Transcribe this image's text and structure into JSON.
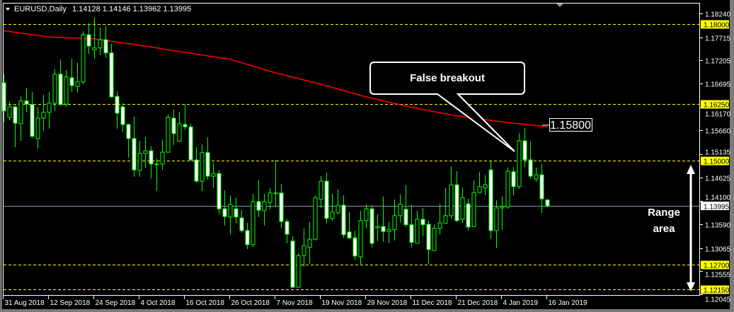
{
  "header": {
    "symbol_timeframe": "EURUSD,Daily",
    "ohlc_text": "1.14128 1.14146 1.13962 1.13995"
  },
  "colors": {
    "background": "#000000",
    "candle_outline": "#00ff00",
    "bear_body": "#ffffff",
    "bull_body": "#000000",
    "level_line": "#ffff00",
    "moving_average": "#ff0000",
    "current_price_line": "#8a9bb0",
    "annotation": "#ffffff"
  },
  "annotations": {
    "callout_text": "False breakout",
    "ma_price_label": "1.15800",
    "range_label_line1": "Range",
    "range_label_line2": "area"
  },
  "chart_data": {
    "type": "candlestick",
    "title": "",
    "ylim": [
      1.12045,
      1.1824
    ],
    "grid": false,
    "y_ticks": [
      "1.18240",
      "1.17715",
      "1.17205",
      "1.16695",
      "1.16170",
      "1.15660",
      "1.15135",
      "1.14625",
      "1.14100",
      "1.13590",
      "1.13065",
      "1.12555",
      "1.12045"
    ],
    "x_tick_labels": [
      "31 Aug 2018",
      "12 Sep 2018",
      "24 Sep 2018",
      "4 Oct 2018",
      "16 Oct 2018",
      "26 Oct 2018",
      "7 Nov 2018",
      "19 Nov 2018",
      "29 Nov 2018",
      "11 Dec 2018",
      "21 Dec 2018",
      "4 Jan 2019",
      "16 Jan 2019"
    ],
    "x_tick_every_n_bars": 8,
    "horizontal_levels": [
      "1.18000",
      "1.16250",
      "1.15000",
      "1.12700",
      "1.12150"
    ],
    "current_price": "1.13995",
    "candle_fields": [
      "open",
      "high",
      "low",
      "close"
    ],
    "candles": [
      [
        1.1671,
        1.169,
        1.1584,
        1.1609
      ],
      [
        1.1595,
        1.1629,
        1.1588,
        1.1618
      ],
      [
        1.1618,
        1.1621,
        1.1529,
        1.1582
      ],
      [
        1.1581,
        1.1641,
        1.1543,
        1.1631
      ],
      [
        1.1631,
        1.166,
        1.1606,
        1.1624
      ],
      [
        1.1623,
        1.1651,
        1.1549,
        1.1553
      ],
      [
        1.1548,
        1.1617,
        1.1526,
        1.1593
      ],
      [
        1.1593,
        1.1645,
        1.1565,
        1.1606
      ],
      [
        1.1606,
        1.1651,
        1.157,
        1.1626
      ],
      [
        1.1626,
        1.1701,
        1.1609,
        1.169
      ],
      [
        1.169,
        1.1723,
        1.1621,
        1.1623
      ],
      [
        1.1624,
        1.1699,
        1.1618,
        1.1684
      ],
      [
        1.1682,
        1.1724,
        1.1651,
        1.1665
      ],
      [
        1.1663,
        1.1715,
        1.1649,
        1.1673
      ],
      [
        1.1673,
        1.1785,
        1.1668,
        1.1777
      ],
      [
        1.1777,
        1.1802,
        1.1734,
        1.1752
      ],
      [
        1.1744,
        1.1815,
        1.1724,
        1.1748
      ],
      [
        1.1748,
        1.1793,
        1.1732,
        1.1766
      ],
      [
        1.1766,
        1.1797,
        1.1726,
        1.1737
      ],
      [
        1.1737,
        1.1757,
        1.1638,
        1.164
      ],
      [
        1.1641,
        1.1652,
        1.157,
        1.1604
      ],
      [
        1.1618,
        1.1626,
        1.1563,
        1.1579
      ],
      [
        1.1579,
        1.1581,
        1.1506,
        1.1548
      ],
      [
        1.1548,
        1.1596,
        1.1464,
        1.1479
      ],
      [
        1.1478,
        1.1543,
        1.1464,
        1.1515
      ],
      [
        1.1515,
        1.1551,
        1.1484,
        1.1521
      ],
      [
        1.1521,
        1.1531,
        1.146,
        1.1492
      ],
      [
        1.1492,
        1.1504,
        1.1432,
        1.1491
      ],
      [
        1.1492,
        1.1546,
        1.1479,
        1.1518
      ],
      [
        1.1518,
        1.1601,
        1.1517,
        1.1595
      ],
      [
        1.1593,
        1.1612,
        1.1534,
        1.1559
      ],
      [
        1.1542,
        1.1607,
        1.1541,
        1.1581
      ],
      [
        1.1579,
        1.1623,
        1.1567,
        1.1574
      ],
      [
        1.1574,
        1.1581,
        1.1498,
        1.1501
      ],
      [
        1.1501,
        1.1529,
        1.1451,
        1.1454
      ],
      [
        1.1454,
        1.1535,
        1.1432,
        1.1517
      ],
      [
        1.1517,
        1.1551,
        1.1457,
        1.1465
      ],
      [
        1.1465,
        1.1495,
        1.144,
        1.1471
      ],
      [
        1.1471,
        1.1478,
        1.1381,
        1.1393
      ],
      [
        1.1393,
        1.1434,
        1.1356,
        1.1376
      ],
      [
        1.1375,
        1.1423,
        1.1336,
        1.1403
      ],
      [
        1.1393,
        1.1418,
        1.1361,
        1.1375
      ],
      [
        1.1373,
        1.139,
        1.134,
        1.1345
      ],
      [
        1.1345,
        1.1362,
        1.1304,
        1.1314
      ],
      [
        1.1314,
        1.1426,
        1.1309,
        1.1409
      ],
      [
        1.1409,
        1.1457,
        1.1375,
        1.139
      ],
      [
        1.1389,
        1.1426,
        1.1356,
        1.1409
      ],
      [
        1.1407,
        1.1439,
        1.1392,
        1.1428
      ],
      [
        1.1428,
        1.1501,
        1.1397,
        1.1427
      ],
      [
        1.1428,
        1.1448,
        1.1351,
        1.1365
      ],
      [
        1.1365,
        1.137,
        1.1317,
        1.1337
      ],
      [
        1.1322,
        1.1333,
        1.1219,
        1.122
      ],
      [
        1.122,
        1.1295,
        1.1219,
        1.129
      ],
      [
        1.129,
        1.135,
        1.1266,
        1.1312
      ],
      [
        1.1308,
        1.1364,
        1.1272,
        1.1326
      ],
      [
        1.1326,
        1.1422,
        1.1323,
        1.1418
      ],
      [
        1.1414,
        1.1465,
        1.1395,
        1.1454
      ],
      [
        1.1454,
        1.1473,
        1.1361,
        1.1372
      ],
      [
        1.1372,
        1.1426,
        1.1367,
        1.1386
      ],
      [
        1.1384,
        1.1436,
        1.1381,
        1.1401
      ],
      [
        1.1401,
        1.1423,
        1.1329,
        1.1336
      ],
      [
        1.1342,
        1.1386,
        1.1326,
        1.1329
      ],
      [
        1.1329,
        1.1345,
        1.128,
        1.1289
      ],
      [
        1.1287,
        1.1389,
        1.1269,
        1.1367
      ],
      [
        1.1367,
        1.1403,
        1.135,
        1.1393
      ],
      [
        1.1393,
        1.1401,
        1.1308,
        1.1317
      ],
      [
        1.1351,
        1.1381,
        1.1322,
        1.1354
      ],
      [
        1.1354,
        1.142,
        1.132,
        1.1343
      ],
      [
        1.1343,
        1.1364,
        1.1317,
        1.1347
      ],
      [
        1.1347,
        1.1414,
        1.1323,
        1.1378
      ],
      [
        1.1378,
        1.1425,
        1.1362,
        1.1403
      ],
      [
        1.1392,
        1.1445,
        1.1353,
        1.1358
      ],
      [
        1.1358,
        1.1401,
        1.1308,
        1.1319
      ],
      [
        1.1317,
        1.1389,
        1.1317,
        1.137
      ],
      [
        1.137,
        1.1395,
        1.1333,
        1.1358
      ],
      [
        1.1359,
        1.1367,
        1.1272,
        1.1303
      ],
      [
        1.1301,
        1.1359,
        1.1301,
        1.135
      ],
      [
        1.135,
        1.1404,
        1.1337,
        1.1362
      ],
      [
        1.1361,
        1.144,
        1.1361,
        1.1378
      ],
      [
        1.1378,
        1.1487,
        1.1372,
        1.1446
      ],
      [
        1.1446,
        1.1476,
        1.1364,
        1.1367
      ],
      [
        1.137,
        1.144,
        1.1362,
        1.1418
      ],
      [
        1.1404,
        1.1415,
        1.1345,
        1.1353
      ],
      [
        1.1354,
        1.1456,
        1.1353,
        1.1429
      ],
      [
        1.1429,
        1.1475,
        1.1428,
        1.1442
      ],
      [
        1.1439,
        1.1467,
        1.1423,
        1.1446
      ],
      [
        1.1479,
        1.1498,
        1.1326,
        1.1345
      ],
      [
        1.1345,
        1.1412,
        1.1306,
        1.1395
      ],
      [
        1.1395,
        1.142,
        1.1347,
        1.1398
      ],
      [
        1.1397,
        1.1484,
        1.1393,
        1.1476
      ],
      [
        1.1475,
        1.1485,
        1.1423,
        1.1442
      ],
      [
        1.1442,
        1.1559,
        1.1437,
        1.1543
      ],
      [
        1.1543,
        1.1571,
        1.1485,
        1.1501
      ],
      [
        1.1501,
        1.1542,
        1.1459,
        1.1465
      ],
      [
        1.1459,
        1.1484,
        1.1453,
        1.1468
      ],
      [
        1.1468,
        1.1492,
        1.1384,
        1.1415
      ],
      [
        1.14128,
        1.14146,
        1.13962,
        1.13995
      ]
    ],
    "moving_average_every_n_bars": 8,
    "moving_average": [
      1.1786,
      1.1772,
      1.1768,
      1.1754,
      1.1738,
      1.1723,
      1.1693,
      1.1668,
      1.164,
      1.1617,
      1.1598,
      1.1585,
      1.1574
    ]
  }
}
